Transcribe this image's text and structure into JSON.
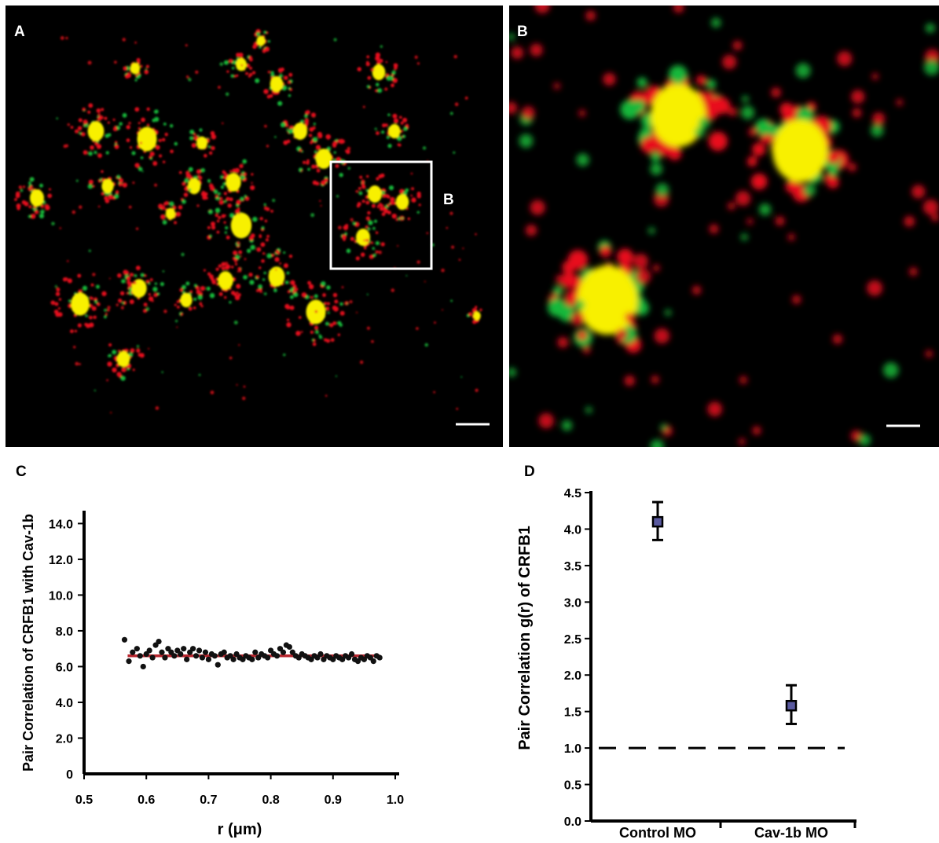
{
  "panels": {
    "a_label": "A",
    "b_label": "B",
    "b_box_label": "B",
    "c_label": "C",
    "d_label": "D"
  },
  "colors": {
    "red": "#e8101c",
    "green": "#18b83a",
    "yellow": "#f8f000",
    "fit": "#b8262e",
    "marker": "#5a5aa0"
  },
  "chart_data": [
    {
      "type": "scatter",
      "panel": "C",
      "title": "",
      "xlabel": "r (μm)",
      "ylabel": "Pair Correlation of CRFB1 with Cav-1b",
      "xlim": [
        0.5,
        1.0
      ],
      "ylim": [
        0,
        14.5
      ],
      "xticks": [
        "0.5",
        "0.6",
        "0.7",
        "0.8",
        "0.9",
        "1.0"
      ],
      "yticks": [
        "0",
        "2.0",
        "4.0",
        "6.0",
        "8.0",
        "10.0",
        "12.0",
        "14.0"
      ],
      "fit_line": {
        "x": [
          0.57,
          0.975
        ],
        "y": [
          6.6,
          6.6
        ]
      },
      "series": [
        {
          "x": [
            0.565,
            0.572,
            0.578,
            0.585,
            0.59,
            0.595,
            0.6,
            0.605,
            0.61,
            0.615,
            0.62,
            0.625,
            0.63,
            0.635,
            0.64,
            0.645,
            0.65,
            0.655,
            0.66,
            0.665,
            0.67,
            0.675,
            0.68,
            0.685,
            0.69,
            0.695,
            0.7,
            0.705,
            0.71,
            0.715,
            0.72,
            0.725,
            0.73,
            0.735,
            0.74,
            0.745,
            0.75,
            0.755,
            0.76,
            0.765,
            0.77,
            0.775,
            0.78,
            0.785,
            0.79,
            0.795,
            0.8,
            0.805,
            0.81,
            0.815,
            0.82,
            0.825,
            0.83,
            0.835,
            0.84,
            0.845,
            0.85,
            0.855,
            0.86,
            0.865,
            0.87,
            0.875,
            0.88,
            0.885,
            0.89,
            0.895,
            0.9,
            0.905,
            0.91,
            0.915,
            0.92,
            0.925,
            0.93,
            0.935,
            0.94,
            0.945,
            0.95,
            0.955,
            0.96,
            0.965,
            0.97,
            0.975
          ],
          "y": [
            7.5,
            6.3,
            6.8,
            7.0,
            6.6,
            6.0,
            6.7,
            6.9,
            6.5,
            7.2,
            7.4,
            6.8,
            6.5,
            7.0,
            6.8,
            6.6,
            6.9,
            6.7,
            7.0,
            6.4,
            6.8,
            7.0,
            6.6,
            6.9,
            6.5,
            6.8,
            6.4,
            6.7,
            6.6,
            6.1,
            6.7,
            6.8,
            6.5,
            6.6,
            6.4,
            6.7,
            6.5,
            6.4,
            6.6,
            6.5,
            6.4,
            6.8,
            6.5,
            6.7,
            6.6,
            6.5,
            6.9,
            6.7,
            6.6,
            7.0,
            6.8,
            7.2,
            7.1,
            6.8,
            6.6,
            6.5,
            6.7,
            6.6,
            6.5,
            6.4,
            6.6,
            6.5,
            6.7,
            6.4,
            6.6,
            6.5,
            6.4,
            6.6,
            6.5,
            6.4,
            6.6,
            6.5,
            6.7,
            6.4,
            6.3,
            6.5,
            6.4,
            6.6,
            6.5,
            6.3,
            6.6,
            6.5
          ]
        }
      ]
    },
    {
      "type": "scatter",
      "panel": "D",
      "title": "",
      "xlabel": "",
      "ylabel": "Pair Correlation g(r) of CRFB1",
      "ylim": [
        0,
        4.5
      ],
      "yticks": [
        "0.0",
        "0.5",
        "1.0",
        "1.5",
        "2.0",
        "2.5",
        "3.0",
        "3.5",
        "4.0",
        "4.5"
      ],
      "categories": [
        "Control MO",
        "Cav-1b MO"
      ],
      "values": [
        4.1,
        1.58
      ],
      "error_low": [
        3.85,
        1.33
      ],
      "error_high": [
        4.37,
        1.86
      ],
      "reference_line": 1.0
    }
  ]
}
